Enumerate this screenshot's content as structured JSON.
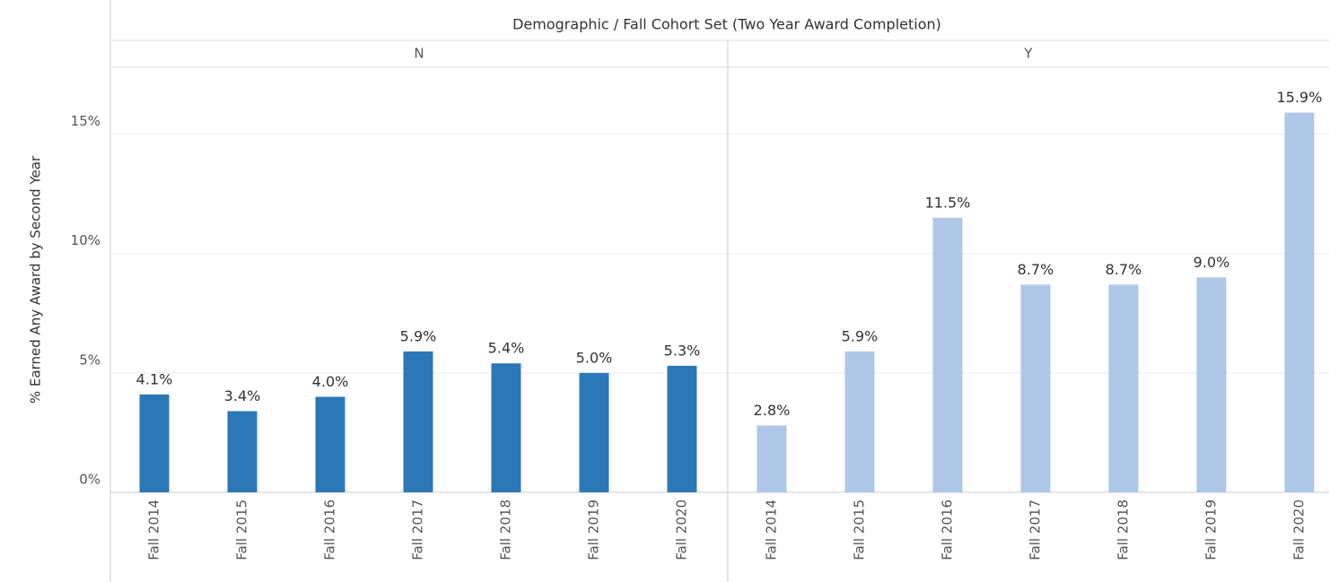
{
  "chart_data": {
    "type": "bar",
    "title": "Demographic / Fall Cohort Set (Two Year Award Completion)",
    "y_label": "% Earned Any Award by Second Year",
    "categories": [
      "Fall 2014",
      "Fall 2015",
      "Fall 2016",
      "Fall 2017",
      "Fall 2018",
      "Fall 2019",
      "Fall 2020"
    ],
    "series": [
      {
        "name": "N",
        "color": "#2c78b6",
        "values": [
          4.1,
          3.4,
          4.0,
          5.9,
          5.4,
          5.0,
          5.3
        ],
        "value_labels": [
          "4.1%",
          "3.4%",
          "4.0%",
          "5.9%",
          "5.4%",
          "5.0%",
          "5.3%"
        ]
      },
      {
        "name": "Y",
        "color": "#aec7e8",
        "values": [
          2.8,
          5.9,
          11.5,
          8.7,
          8.7,
          9.0,
          15.9
        ],
        "value_labels": [
          "2.8%",
          "5.9%",
          "11.5%",
          "8.7%",
          "8.7%",
          "9.0%",
          "15.9%"
        ]
      }
    ],
    "ylim": [
      0,
      17.8
    ],
    "yticks": [
      {
        "value": 0,
        "label": "0%"
      },
      {
        "value": 5,
        "label": "5%"
      },
      {
        "value": 10,
        "label": "10%"
      },
      {
        "value": 15,
        "label": "15%"
      }
    ],
    "grid": true
  }
}
